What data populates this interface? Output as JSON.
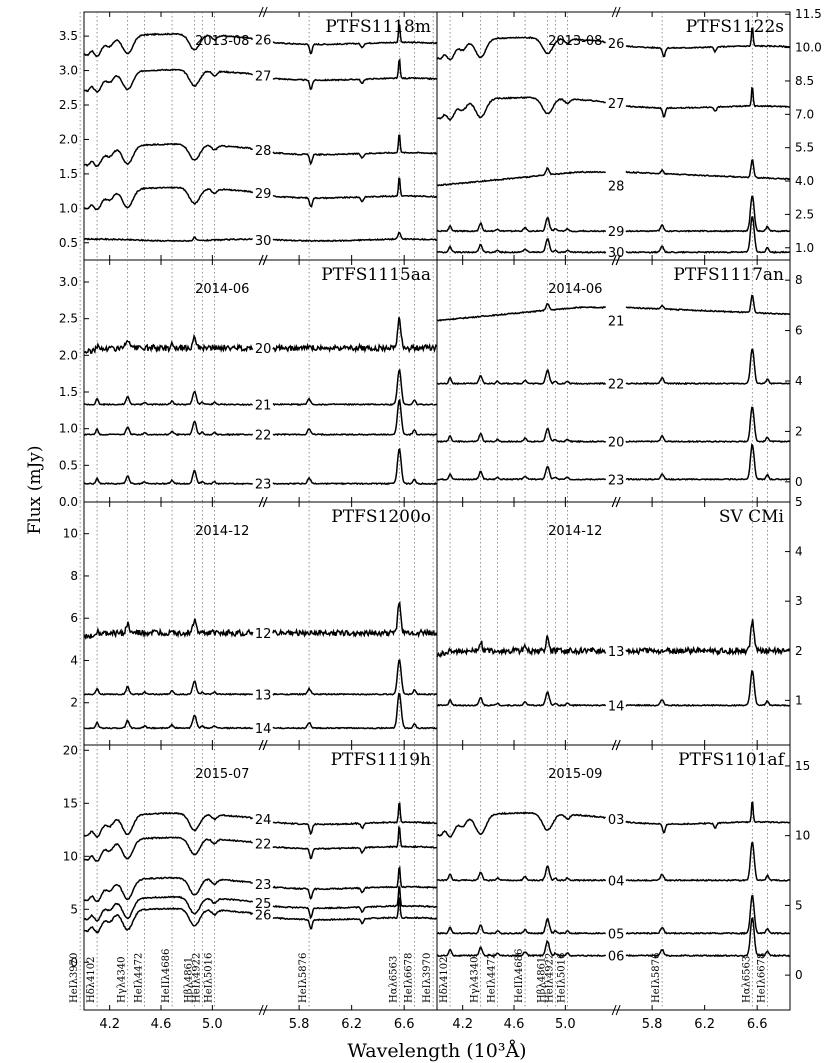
{
  "figure": {
    "ylabel": "Flux (mJy)",
    "xlabel": "Wavelength (10³Å)",
    "x_ticks_left": [
      "4.2",
      "4.6",
      "5.0",
      "5.8",
      "6.2",
      "6.6"
    ],
    "x_ticks_right": [
      "4.2",
      "4.6",
      "5.0",
      "5.8",
      "6.2",
      "6.6"
    ],
    "line_labels": [
      "HeIλ3970",
      "Hδλ4102",
      "Hγλ4340",
      "HeIλ4472",
      "HeIIλ4686",
      "Hβλ4861",
      "HeIλ4922",
      "HeIλ5016",
      "HeIλ5876",
      "Hαλ6563",
      "HeIλ6678"
    ],
    "line_wavelengths": [
      3.97,
      4.102,
      4.34,
      4.472,
      4.686,
      4.861,
      4.922,
      5.016,
      5.876,
      6.563,
      6.678
    ]
  },
  "chart_data": [
    {
      "type": "line",
      "title": "PTFS1118m",
      "date": "2013-08",
      "ylim": [
        0.25,
        3.85
      ],
      "yticks": [
        "0.5",
        "1.0",
        "1.5",
        "2.0",
        "2.5",
        "3.0",
        "3.5"
      ],
      "series": [
        {
          "name": "26",
          "offset": 3.45,
          "shape": "cool"
        },
        {
          "name": "27",
          "offset": 2.93,
          "shape": "cool"
        },
        {
          "name": "28",
          "offset": 1.85,
          "shape": "cool"
        },
        {
          "name": "29",
          "offset": 1.22,
          "shape": "cool"
        },
        {
          "name": "30",
          "offset": 0.54,
          "shape": "flat"
        }
      ]
    },
    {
      "type": "line",
      "title": "PTFS1122s",
      "date": "2013-08",
      "ylim": [
        0.45,
        11.6
      ],
      "yticks_right": [
        "1.0",
        "2.5",
        "4.0",
        "5.5",
        "7.0",
        "8.5",
        "10.0",
        "11.5"
      ],
      "series": [
        {
          "name": "26",
          "offset": 10.2,
          "shape": "cool"
        },
        {
          "name": "27",
          "offset": 7.5,
          "shape": "cool"
        },
        {
          "name": "28",
          "offset": 3.8,
          "shape": "red"
        },
        {
          "name": "29",
          "offset": 1.75,
          "shape": "emit"
        },
        {
          "name": "30",
          "offset": 0.8,
          "shape": "emit"
        }
      ]
    },
    {
      "type": "line",
      "title": "PTFS1115aa",
      "date": "2014-06",
      "ylim": [
        0.0,
        3.3
      ],
      "yticks": [
        "0.0",
        "0.5",
        "1.0",
        "1.5",
        "2.0",
        "2.5",
        "3.0"
      ],
      "series": [
        {
          "name": "20",
          "offset": 2.1,
          "shape": "noisy"
        },
        {
          "name": "21",
          "offset": 1.33,
          "shape": "emit"
        },
        {
          "name": "22",
          "offset": 0.92,
          "shape": "emit"
        },
        {
          "name": "23",
          "offset": 0.25,
          "shape": "emit"
        }
      ]
    },
    {
      "type": "line",
      "title": "PTFS1117an",
      "date": "2014-06",
      "ylim": [
        -0.8,
        8.8
      ],
      "yticks_right": [
        "0",
        "2",
        "4",
        "6",
        "8"
      ],
      "series": [
        {
          "name": "21",
          "offset": 6.4,
          "shape": "red"
        },
        {
          "name": "22",
          "offset": 3.9,
          "shape": "emit"
        },
        {
          "name": "20",
          "offset": 1.6,
          "shape": "emit"
        },
        {
          "name": "23",
          "offset": 0.1,
          "shape": "emit"
        }
      ]
    },
    {
      "type": "line",
      "title": "PTFS1200o",
      "date": "2014-12",
      "ylim": [
        0.0,
        11.5
      ],
      "yticks": [
        "2",
        "4",
        "6",
        "8",
        "10"
      ],
      "series": [
        {
          "name": "12",
          "offset": 5.3,
          "shape": "noisy"
        },
        {
          "name": "13",
          "offset": 2.4,
          "shape": "emit"
        },
        {
          "name": "14",
          "offset": 0.8,
          "shape": "emit"
        }
      ]
    },
    {
      "type": "line",
      "title": "SV CMi",
      "date": "2014-12",
      "ylim": [
        0.1,
        5.0
      ],
      "yticks_right": [
        "1",
        "2",
        "3",
        "4",
        "5"
      ],
      "series": [
        {
          "name": "13",
          "offset": 2.0,
          "shape": "noisy"
        },
        {
          "name": "14",
          "offset": 0.9,
          "shape": "emit"
        }
      ]
    },
    {
      "type": "line",
      "title": "PTFS1119h",
      "date": "2015-07",
      "ylim": [
        -4.5,
        20.5
      ],
      "yticks": [
        "0",
        "5",
        "10",
        "15",
        "20"
      ],
      "series": [
        {
          "name": "24",
          "offset": 13.5,
          "shape": "cool"
        },
        {
          "name": "22",
          "offset": 11.2,
          "shape": "cool"
        },
        {
          "name": "23",
          "offset": 7.4,
          "shape": "cool"
        },
        {
          "name": "25",
          "offset": 5.6,
          "shape": "cool"
        },
        {
          "name": "26",
          "offset": 4.5,
          "shape": "cool"
        }
      ]
    },
    {
      "type": "line",
      "title": "PTFS1101af",
      "date": "2015-09",
      "ylim": [
        -2.5,
        16.5
      ],
      "yticks_right": [
        "0",
        "5",
        "10",
        "15"
      ],
      "series": [
        {
          "name": "03",
          "offset": 11.2,
          "shape": "cool"
        },
        {
          "name": "04",
          "offset": 6.8,
          "shape": "emit"
        },
        {
          "name": "05",
          "offset": 3.0,
          "shape": "emit"
        },
        {
          "name": "06",
          "offset": 1.4,
          "shape": "emit"
        }
      ]
    }
  ]
}
